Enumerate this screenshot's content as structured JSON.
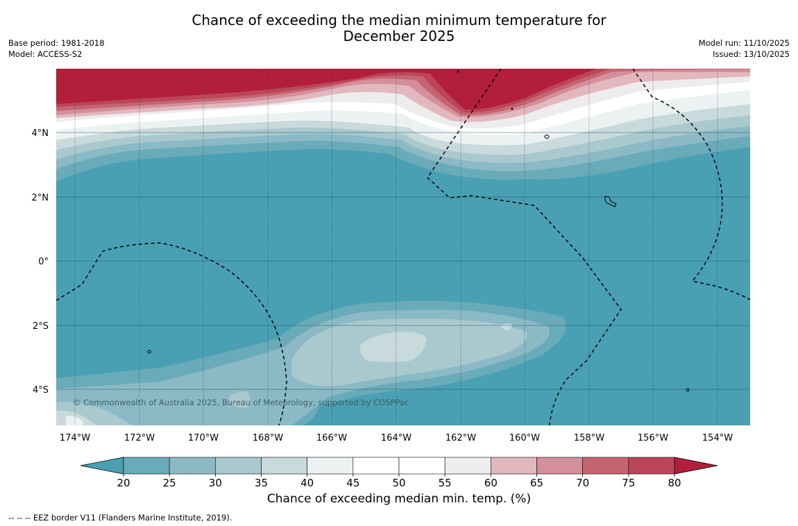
{
  "title": {
    "line1": "Chance of exceeding the median minimum temperature for",
    "line2": "December 2025"
  },
  "meta_left": {
    "base_period": "Base period: 1981-2018",
    "model": "Model: ACCESS-S2"
  },
  "meta_right": {
    "model_run": "Model run: 11/10/2025",
    "issued": "Issued: 13/10/2025"
  },
  "lat_labels": [
    "4°N",
    "2°N",
    "0°",
    "2°S",
    "4°S"
  ],
  "lon_labels": [
    "174°W",
    "172°W",
    "170°W",
    "168°W",
    "166°W",
    "164°W",
    "162°W",
    "160°W",
    "158°W",
    "156°W",
    "154°W"
  ],
  "copyright": "© Commonwealth of Australia 2025, Bureau of Meteorology, supported by COSPPac",
  "colorbar": {
    "ticks": [
      "20",
      "25",
      "30",
      "35",
      "40",
      "45",
      "50",
      "55",
      "60",
      "65",
      "70",
      "75",
      "80"
    ],
    "colors": [
      "#6aabba",
      "#8bbac6",
      "#a9c9cf",
      "#c9dadd",
      "#ecf1f2",
      "#ffffff",
      "#ffffff",
      "#eeeced",
      "#e0b8be",
      "#d4909a",
      "#c66572",
      "#bc4659"
    ],
    "under_color": "#48a0b2",
    "over_color": "#b21e3b",
    "label": "Chance of exceeding median min. temp. (%)"
  },
  "footnote": "--  --  -- EEZ border V11 (Flanders Marine Institute, 2019).",
  "map_colors": {
    "base": "#48a0b2",
    "hot": "#b21e3b",
    "gridline": "#1d4d59"
  }
}
